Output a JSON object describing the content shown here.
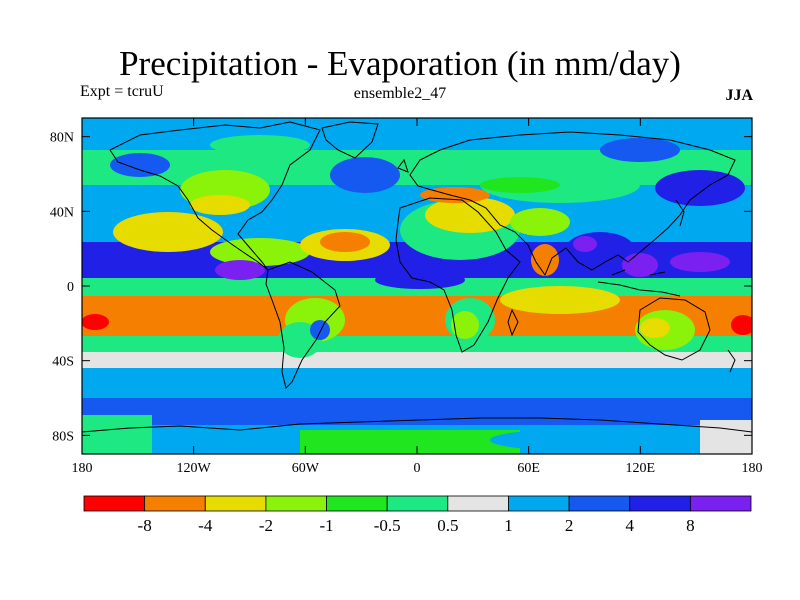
{
  "title": "Precipitation - Evaporation (in mm/day)",
  "experiment": "Expt = tcruU",
  "run_name": "ensemble2_47",
  "season": "JJA",
  "map": {
    "projection": "cylindrical-equidistant",
    "x_ticks": [
      "180",
      "120W",
      "60W",
      "0",
      "60E",
      "120E",
      "180"
    ],
    "y_ticks": [
      "80N",
      "40N",
      "0",
      "40S",
      "80S"
    ],
    "y_tick_latitudes": [
      80,
      40,
      0,
      -40,
      -80
    ]
  },
  "colorbar": {
    "labels": [
      "-8",
      "-4",
      "-2",
      "-1",
      "-0.5",
      "0.5",
      "1",
      "2",
      "4",
      "8"
    ],
    "colors": [
      "#ff0000",
      "#f57f00",
      "#e6dc00",
      "#8bf20a",
      "#20e620",
      "#1ee882",
      "#e4e4e4",
      "#00a8f0",
      "#1659f0",
      "#2020e6",
      "#7a20f0"
    ]
  },
  "chart_data": {
    "type": "heatmap",
    "title": "Precipitation - Evaporation (in mm/day)",
    "xlabel": "",
    "ylabel": "",
    "x_range": [
      -180,
      180
    ],
    "y_range": [
      -90,
      90
    ],
    "levels": [
      -8,
      -4,
      -2,
      -1,
      -0.5,
      0.5,
      1,
      2,
      4,
      8
    ],
    "units": "mm/day"
  }
}
